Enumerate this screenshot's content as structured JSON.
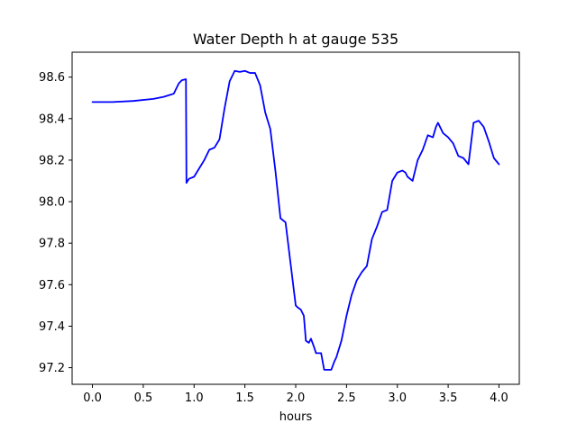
{
  "chart_data": {
    "type": "line",
    "title": "Water Depth h at gauge 535",
    "xlabel": "hours",
    "ylabel": "",
    "xlim": [
      -0.2,
      4.2
    ],
    "ylim": [
      97.12,
      98.72
    ],
    "xticks": [
      0.0,
      0.5,
      1.0,
      1.5,
      2.0,
      2.5,
      3.0,
      3.5,
      4.0
    ],
    "xtick_labels": [
      "0.0",
      "0.5",
      "1.0",
      "1.5",
      "2.0",
      "2.5",
      "3.0",
      "3.5",
      "4.0"
    ],
    "yticks": [
      97.2,
      97.4,
      97.6,
      97.8,
      98.0,
      98.2,
      98.4,
      98.6
    ],
    "ytick_labels": [
      "97.2",
      "97.4",
      "97.6",
      "97.8",
      "98.0",
      "98.2",
      "98.4",
      "98.6"
    ],
    "grid": false,
    "series": [
      {
        "color": "#0000ff",
        "x": [
          0.0,
          0.2,
          0.4,
          0.6,
          0.7,
          0.8,
          0.85,
          0.88,
          0.92,
          0.925,
          0.93,
          0.95,
          1.0,
          1.05,
          1.1,
          1.15,
          1.2,
          1.25,
          1.3,
          1.35,
          1.4,
          1.45,
          1.5,
          1.55,
          1.6,
          1.65,
          1.7,
          1.75,
          1.8,
          1.85,
          1.9,
          1.95,
          2.0,
          2.02,
          2.05,
          2.08,
          2.1,
          2.13,
          2.15,
          2.18,
          2.2,
          2.25,
          2.28,
          2.32,
          2.35,
          2.38,
          2.4,
          2.45,
          2.5,
          2.55,
          2.6,
          2.65,
          2.7,
          2.75,
          2.8,
          2.85,
          2.9,
          2.95,
          3.0,
          3.05,
          3.08,
          3.1,
          3.15,
          3.2,
          3.25,
          3.3,
          3.35,
          3.38,
          3.4,
          3.45,
          3.5,
          3.55,
          3.6,
          3.65,
          3.7,
          3.75,
          3.8,
          3.85,
          3.9,
          3.95,
          4.0
        ],
        "y": [
          98.48,
          98.48,
          98.485,
          98.495,
          98.505,
          98.52,
          98.57,
          98.585,
          98.59,
          98.09,
          98.095,
          98.11,
          98.12,
          98.16,
          98.2,
          98.25,
          98.26,
          98.3,
          98.45,
          98.58,
          98.63,
          98.625,
          98.63,
          98.62,
          98.62,
          98.56,
          98.43,
          98.35,
          98.15,
          97.92,
          97.9,
          97.7,
          97.5,
          97.49,
          97.48,
          97.45,
          97.33,
          97.32,
          97.34,
          97.3,
          97.27,
          97.27,
          97.19,
          97.19,
          97.19,
          97.23,
          97.25,
          97.33,
          97.45,
          97.55,
          97.62,
          97.66,
          97.69,
          97.82,
          97.88,
          97.95,
          97.96,
          98.1,
          98.14,
          98.15,
          98.14,
          98.12,
          98.1,
          98.2,
          98.25,
          98.32,
          98.31,
          98.36,
          98.38,
          98.33,
          98.31,
          98.28,
          98.22,
          98.21,
          98.18,
          98.38,
          98.39,
          98.36,
          98.29,
          98.21,
          98.18
        ]
      }
    ]
  }
}
